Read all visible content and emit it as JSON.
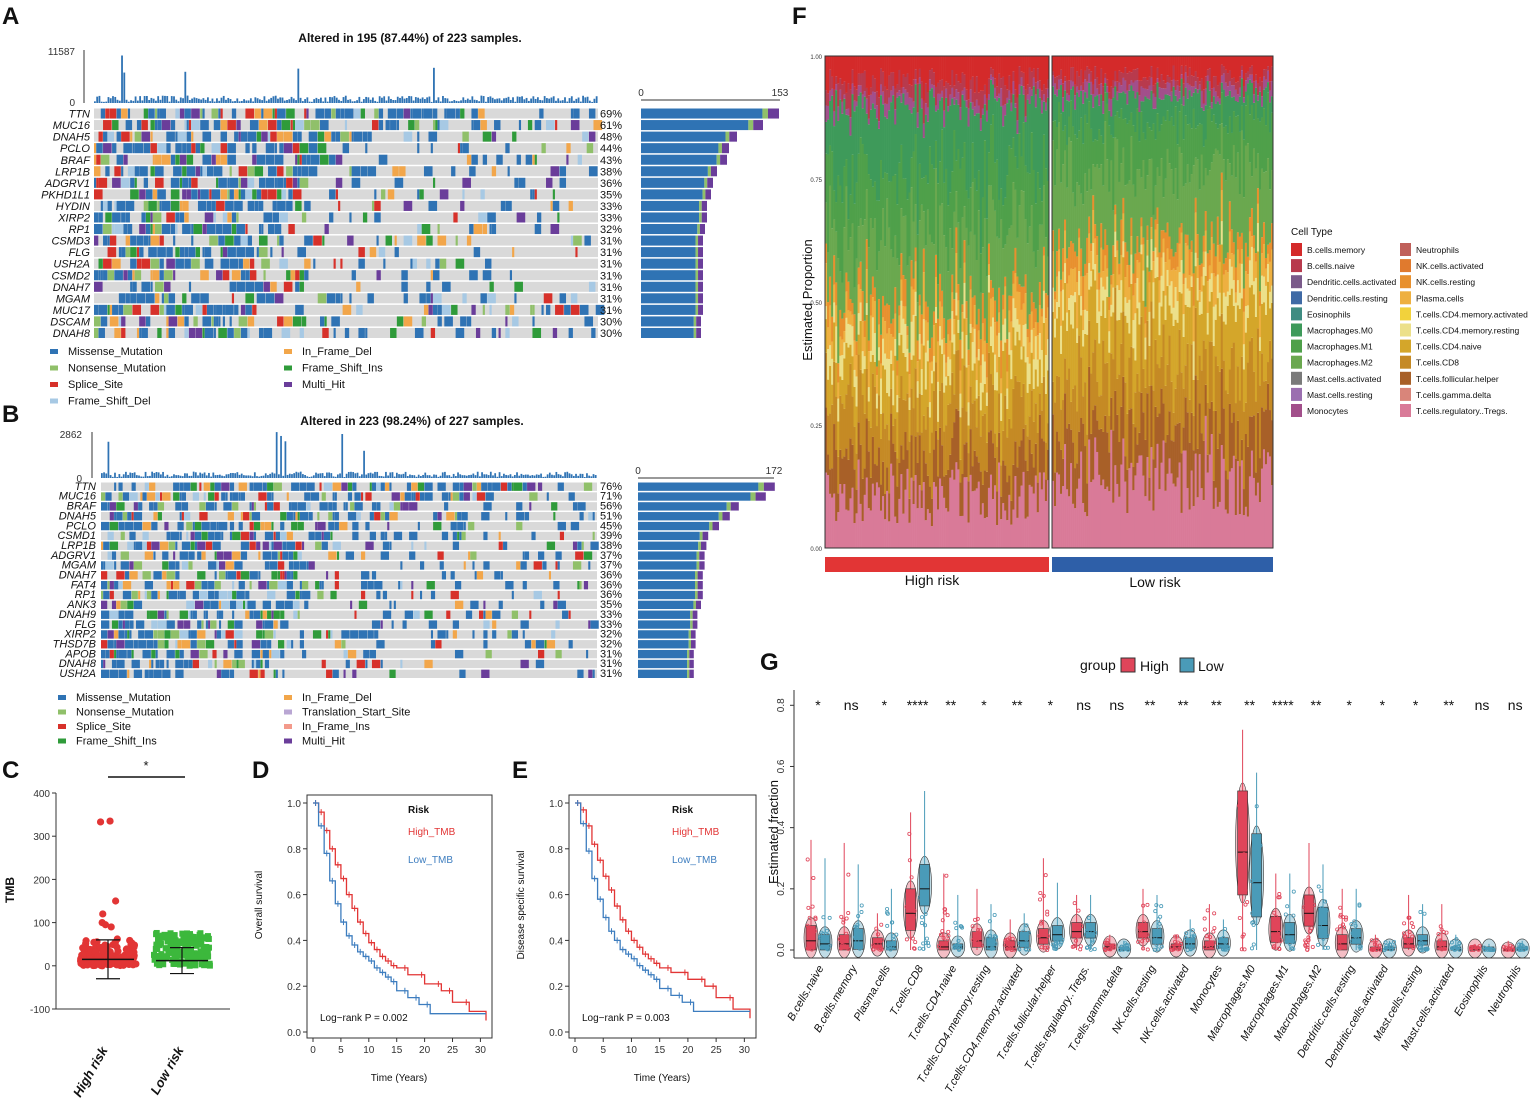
{
  "panel_letters": [
    "A",
    "B",
    "C",
    "D",
    "E",
    "F",
    "G"
  ],
  "colors": {
    "missense": "#2f73b4",
    "nonsense": "#90c06a",
    "splice": "#d7312a",
    "frame_shift_del": "#a7c9e4",
    "in_frame_del": "#f2a64a",
    "frame_shift_ins": "#2f9b3a",
    "multi_hit": "#6a3d9a",
    "translation_start": "#b9a6d3",
    "in_frame_ins": "#f39a8b",
    "grey": "#d9d9d9",
    "high": "#e23535",
    "low": "#2e5fa8",
    "high_box": "#e0455a",
    "low_box": "#4a9bb8"
  },
  "chart_data": [
    {
      "panel": "A",
      "type": "table",
      "title": "Altered in 195 (87.44%) of 223 samples.",
      "top_axis_max": "11587",
      "top_axis_min": "0",
      "right_axis_min": "0",
      "right_axis_max": "153",
      "genes": [
        "TTN",
        "MUC16",
        "DNAH5",
        "PCLO",
        "BRAF",
        "LRP1B",
        "ADGRV1",
        "PKHD1L1",
        "HYDIN",
        "XIRP2",
        "RP1",
        "CSMD3",
        "FLG",
        "USH2A",
        "CSMD2",
        "DNAH7",
        "MGAM",
        "MUC17",
        "DSCAM",
        "DNAH8"
      ],
      "percents": [
        "69%",
        "61%",
        "48%",
        "44%",
        "43%",
        "38%",
        "36%",
        "35%",
        "33%",
        "33%",
        "32%",
        "31%",
        "31%",
        "31%",
        "31%",
        "31%",
        "31%",
        "31%",
        "30%",
        "30%"
      ],
      "legend": [
        "Missense_Mutation",
        "In_Frame_Del",
        "Nonsense_Mutation",
        "Frame_Shift_Ins",
        "Splice_Site",
        "Multi_Hit",
        "Frame_Shift_Del"
      ],
      "legend_colors": [
        "missense",
        "in_frame_del",
        "nonsense",
        "frame_shift_ins",
        "splice",
        "multi_hit",
        "frame_shift_del"
      ]
    },
    {
      "panel": "B",
      "type": "table",
      "title": "Altered in 223 (98.24%) of 227 samples.",
      "top_axis_max": "2862",
      "top_axis_min": "0",
      "right_axis_min": "0",
      "right_axis_max": "172",
      "genes": [
        "TTN",
        "MUC16",
        "BRAF",
        "DNAH5",
        "PCLO",
        "CSMD1",
        "LRP1B",
        "ADGRV1",
        "MGAM",
        "DNAH7",
        "FAT4",
        "RP1",
        "ANK3",
        "DNAH9",
        "FLG",
        "XIRP2",
        "THSD7B",
        "APOB",
        "DNAH8",
        "USH2A"
      ],
      "percents": [
        "76%",
        "71%",
        "56%",
        "51%",
        "45%",
        "39%",
        "38%",
        "37%",
        "37%",
        "36%",
        "36%",
        "36%",
        "35%",
        "33%",
        "33%",
        "32%",
        "32%",
        "31%",
        "31%",
        "31%"
      ],
      "legend": [
        "Missense_Mutation",
        "In_Frame_Del",
        "Nonsense_Mutation",
        "Translation_Start_Site",
        "Splice_Site",
        "In_Frame_Ins",
        "Frame_Shift_Ins",
        "Multi_Hit"
      ],
      "legend_colors": [
        "missense",
        "in_frame_del",
        "nonsense",
        "translation_start",
        "splice",
        "in_frame_ins",
        "frame_shift_ins",
        "multi_hit"
      ]
    },
    {
      "panel": "C",
      "type": "scatter",
      "ylabel": "TMB",
      "yticks": [
        "400",
        "300",
        "200",
        "100",
        "0",
        "-100"
      ],
      "ylim": [
        -100,
        400
      ],
      "categories": [
        "High risk",
        "Low risk"
      ],
      "significance": "*",
      "high_outliers": [
        335,
        333,
        150,
        120,
        100,
        95,
        90
      ],
      "low_max": 85
    },
    {
      "panel": "D",
      "type": "line",
      "ylabel": "Overall survival",
      "xlabel": "Time (Years)",
      "xticks": [
        "0",
        "5",
        "10",
        "15",
        "20",
        "25",
        "30"
      ],
      "yticks": [
        "1.0",
        "0.8",
        "0.6",
        "0.4",
        "0.2",
        "0.0"
      ],
      "legend_title": "Risk",
      "series_names": [
        "High_TMB",
        "Low_TMB"
      ],
      "pvalue": "Log−rank P = 0.002",
      "high_x": [
        0,
        1,
        2,
        3,
        4,
        5,
        6,
        7,
        8,
        9,
        10,
        11,
        12,
        13,
        14,
        15,
        17,
        20,
        23,
        25,
        28,
        31
      ],
      "high_y": [
        1.0,
        0.96,
        0.88,
        0.8,
        0.73,
        0.67,
        0.6,
        0.54,
        0.48,
        0.43,
        0.39,
        0.36,
        0.33,
        0.31,
        0.29,
        0.28,
        0.25,
        0.21,
        0.18,
        0.13,
        0.09,
        0.05
      ],
      "low_x": [
        0,
        1,
        2,
        3,
        4,
        5,
        6,
        7,
        8,
        9,
        10,
        11,
        12,
        13,
        14,
        15,
        17,
        19,
        21,
        31
      ],
      "low_y": [
        1.0,
        0.9,
        0.78,
        0.66,
        0.56,
        0.48,
        0.42,
        0.38,
        0.35,
        0.33,
        0.31,
        0.28,
        0.26,
        0.24,
        0.22,
        0.18,
        0.15,
        0.12,
        0.08,
        0.08
      ]
    },
    {
      "panel": "E",
      "type": "line",
      "ylabel": "Disease specific survival",
      "xlabel": "Time (Years)",
      "xticks": [
        "0",
        "5",
        "10",
        "15",
        "20",
        "25",
        "30"
      ],
      "yticks": [
        "1.0",
        "0.8",
        "0.6",
        "0.4",
        "0.2",
        "0.0"
      ],
      "legend_title": "Risk",
      "series_names": [
        "High_TMB",
        "Low_TMB"
      ],
      "pvalue": "Log−rank P = 0.003",
      "high_x": [
        0,
        1,
        2,
        3,
        4,
        5,
        6,
        7,
        8,
        9,
        10,
        11,
        12,
        13,
        14,
        15,
        17,
        20,
        23,
        25,
        28,
        31
      ],
      "high_y": [
        1.0,
        0.97,
        0.9,
        0.82,
        0.75,
        0.68,
        0.62,
        0.55,
        0.49,
        0.44,
        0.4,
        0.37,
        0.34,
        0.32,
        0.3,
        0.28,
        0.26,
        0.23,
        0.2,
        0.15,
        0.1,
        0.06
      ],
      "low_x": [
        0,
        1,
        2,
        3,
        4,
        5,
        6,
        7,
        8,
        9,
        10,
        11,
        12,
        13,
        14,
        15,
        17,
        19,
        21,
        31
      ],
      "low_y": [
        1.0,
        0.91,
        0.79,
        0.67,
        0.58,
        0.5,
        0.44,
        0.4,
        0.36,
        0.34,
        0.32,
        0.29,
        0.27,
        0.25,
        0.23,
        0.19,
        0.16,
        0.13,
        0.09,
        0.09
      ]
    },
    {
      "panel": "F",
      "type": "bar",
      "ylabel": "Estimated Proportion",
      "yticks": [
        "1.00",
        "0.75",
        "0.50",
        "0.25",
        "0.00"
      ],
      "groups": [
        "High risk",
        "Low risk"
      ],
      "legend_title": "Cell Type",
      "cell_types": [
        "B.cells.memory",
        "B.cells.naive",
        "Dendritic.cells.activated",
        "Dendritic.cells.resting",
        "Eosinophils",
        "Macrophages.M0",
        "Macrophages.M1",
        "Macrophages.M2",
        "Mast.cells.activated",
        "Mast.cells.resting",
        "Monocytes",
        "Neutrophils",
        "NK.cells.activated",
        "NK.cells.resting",
        "Plasma.cells",
        "T.cells.CD4.memory.activated",
        "T.cells.CD4.memory.resting",
        "T.cells.CD4.naive",
        "T.cells.CD8",
        "T.cells.follicular.helper",
        "T.cells.gamma.delta",
        "T.cells.regulatory..Tregs."
      ],
      "cell_colors": [
        "#d42a2a",
        "#b83a4d",
        "#7a5a8a",
        "#3f6aa5",
        "#3f8c82",
        "#3e9a5a",
        "#4fa04a",
        "#6aa84f",
        "#7a7a7a",
        "#9b6fb0",
        "#a24f8b",
        "#c0605a",
        "#e07a2e",
        "#e8902e",
        "#eeb040",
        "#f2d23c",
        "#ece08a",
        "#d4a62a",
        "#c58a25",
        "#a86028",
        "#d9857a",
        "#d97a98"
      ],
      "stack_order_bottom_to_top": [
        "T.cells.regulatory..Tregs.",
        "T.cells.follicular.helper",
        "T.cells.CD8",
        "T.cells.CD4.naive",
        "T.cells.CD4.memory.resting",
        "Plasma.cells",
        "NK.cells.resting",
        "Macrophages.M2",
        "Macrophages.M1",
        "Macrophages.M0",
        "Monocytes",
        "B.cells.naive",
        "B.cells.memory"
      ],
      "high_mean_fractions": [
        0.11,
        0.08,
        0.1,
        0.08,
        0.05,
        0.05,
        0.04,
        0.14,
        0.12,
        0.13,
        0.02,
        0.03,
        0.05
      ],
      "low_mean_fractions": [
        0.14,
        0.1,
        0.12,
        0.12,
        0.05,
        0.05,
        0.04,
        0.15,
        0.1,
        0.05,
        0.02,
        0.02,
        0.04
      ]
    },
    {
      "panel": "G",
      "type": "bar",
      "ylabel": "Estimated fraction",
      "yticks": [
        "0.8",
        "0.6",
        "0.4",
        "0.2",
        "0.0"
      ],
      "ylim": [
        0,
        0.85
      ],
      "legend_title": "group",
      "legend_items": [
        "High",
        "Low"
      ],
      "categories": [
        "B.cells.naive",
        "B.cells.memory",
        "Plasma.cells",
        "T.cells.CD8",
        "T.cells.CD4.naive",
        "T.cells.CD4.memory.resting",
        "T.cells.CD4.memory.activated",
        "T.cells.follicular.helper",
        "T.cells.regulatory..Tregs.",
        "T.cells.gamma.delta",
        "NK.cells.resting",
        "NK.cells.activated",
        "Monocytes",
        "Macrophages.M0",
        "Macrophages.M1",
        "Macrophages.M2",
        "Dendritic.cells.resting",
        "Dendritic.cells.activated",
        "Mast.cells.resting",
        "Mast.cells.activated",
        "Eosinophils",
        "Neutrophils"
      ],
      "significance": [
        "*",
        "ns",
        "*",
        "****",
        "**",
        "*",
        "**",
        "*",
        "ns",
        "ns",
        "**",
        "**",
        "**",
        "**",
        "****",
        "**",
        "*",
        "*",
        "*",
        "**",
        "ns",
        "ns"
      ],
      "high_median": [
        0.03,
        0.02,
        0.02,
        0.12,
        0.01,
        0.03,
        0.01,
        0.04,
        0.06,
        0.01,
        0.06,
        0.01,
        0.01,
        0.32,
        0.06,
        0.12,
        0.02,
        0.0,
        0.02,
        0.01,
        0.0,
        0.0
      ],
      "high_q3": [
        0.08,
        0.05,
        0.04,
        0.2,
        0.03,
        0.06,
        0.03,
        0.07,
        0.09,
        0.02,
        0.09,
        0.02,
        0.03,
        0.52,
        0.11,
        0.18,
        0.05,
        0.01,
        0.04,
        0.03,
        0.01,
        0.0
      ],
      "high_max": [
        0.36,
        0.35,
        0.12,
        0.45,
        0.25,
        0.2,
        0.1,
        0.3,
        0.18,
        0.05,
        0.2,
        0.05,
        0.15,
        0.72,
        0.25,
        0.35,
        0.2,
        0.05,
        0.18,
        0.15,
        0.02,
        0.03
      ],
      "low_median": [
        0.02,
        0.03,
        0.01,
        0.2,
        0.01,
        0.01,
        0.03,
        0.05,
        0.06,
        0.0,
        0.04,
        0.02,
        0.02,
        0.22,
        0.05,
        0.08,
        0.04,
        0.0,
        0.03,
        0.0,
        0.0,
        0.0
      ],
      "low_q3": [
        0.05,
        0.07,
        0.03,
        0.28,
        0.02,
        0.04,
        0.06,
        0.08,
        0.09,
        0.01,
        0.07,
        0.04,
        0.04,
        0.38,
        0.09,
        0.14,
        0.07,
        0.01,
        0.05,
        0.01,
        0.01,
        0.01
      ],
      "low_max": [
        0.3,
        0.28,
        0.2,
        0.52,
        0.18,
        0.15,
        0.12,
        0.22,
        0.18,
        0.03,
        0.18,
        0.1,
        0.1,
        0.58,
        0.25,
        0.28,
        0.2,
        0.03,
        0.15,
        0.05,
        0.02,
        0.03
      ]
    }
  ]
}
